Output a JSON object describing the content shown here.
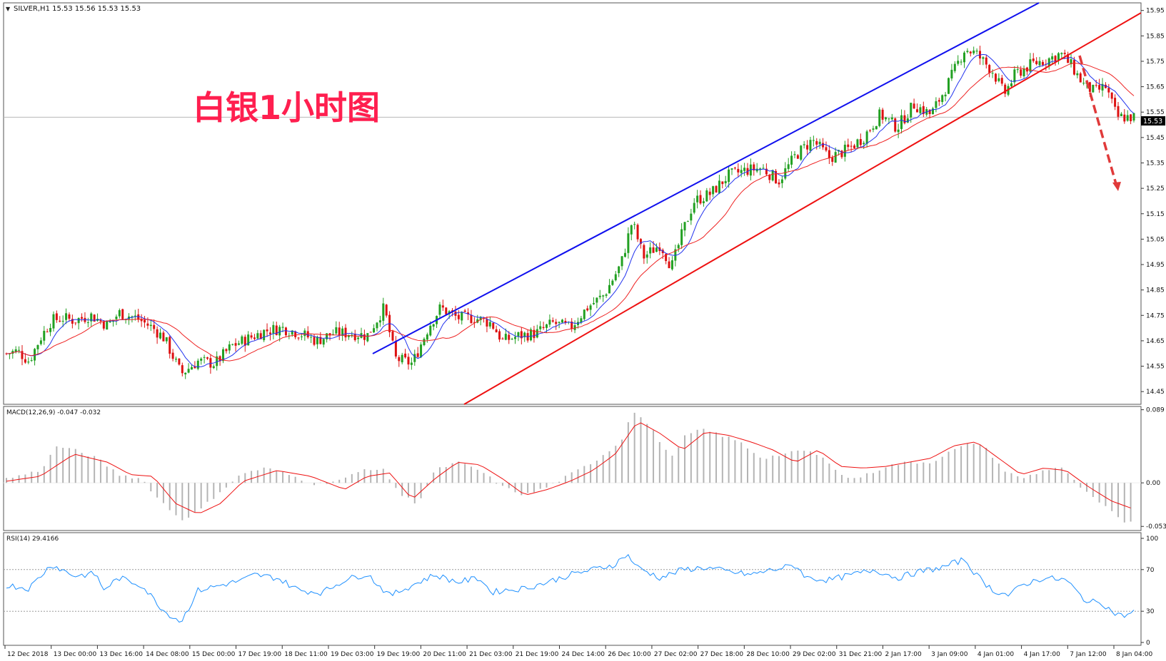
{
  "header": {
    "symbol_line": "SILVER,H1  15.53 15.56 15.53 15.53",
    "overlay_title": "白银1小时图"
  },
  "price_panel": {
    "axis_ticks": [
      "15.95",
      "15.85",
      "15.75",
      "15.65",
      "15.55",
      "15.45",
      "15.35",
      "15.25",
      "15.15",
      "15.05",
      "14.95",
      "14.85",
      "14.75",
      "14.65",
      "14.55",
      "14.45"
    ],
    "current_price_label": "15.53",
    "current_price": 15.53,
    "y_range": [
      14.4,
      15.98
    ]
  },
  "macd_panel": {
    "label": "MACD(12,26,9) -0.047 -0.032",
    "axis_ticks": [
      "0.089",
      "0.00",
      "-0.053"
    ],
    "y_range": [
      -0.058,
      0.093
    ]
  },
  "rsi_panel": {
    "label": "RSI(14) 29.4166",
    "axis_ticks": [
      "100",
      "70",
      "30",
      "0"
    ],
    "levels": [
      70,
      30
    ]
  },
  "time_axis": {
    "labels": [
      "12 Dec 2018",
      "13 Dec 00:00",
      "13 Dec 16:00",
      "14 Dec 08:00",
      "15 Dec 00:00",
      "17 Dec 19:00",
      "18 Dec 11:00",
      "19 Dec 03:00",
      "19 Dec 19:00",
      "20 Dec 11:00",
      "21 Dec 03:00",
      "21 Dec 19:00",
      "24 Dec 14:00",
      "26 Dec 10:00",
      "27 Dec 02:00",
      "27 Dec 18:00",
      "28 Dec 10:00",
      "29 Dec 02:00",
      "31 Dec 21:00",
      "2 Jan 17:00",
      "3 Jan 09:00",
      "4 Jan 01:00",
      "4 Jan 17:00",
      "7 Jan 12:00",
      "8 Jan 04:00"
    ]
  },
  "colors": {
    "bull_candle": "#22a022",
    "bear_candle": "#dd1111",
    "upper_channel": "#1010ee",
    "lower_channel": "#ee1111",
    "fast_ma": "#2233ee",
    "slow_ma": "#ee2222",
    "macd_histogram": "#b4b4b4",
    "macd_signal": "#ee1111",
    "rsi_line": "#1e90ff",
    "title_color": "#ff1f4f",
    "forecast_arrow": "#e03a3a"
  },
  "chart_data": [
    {
      "type": "candlestick",
      "symbol": "SILVER",
      "timeframe": "H1",
      "overlays": [
        "upper channel line (blue)",
        "lower channel line (red)",
        "fast moving average (blue)",
        "slow moving average (red)",
        "dashed down arrow"
      ],
      "price_path": [
        {
          "x": 0.0,
          "y": 14.6
        },
        {
          "x": 0.01,
          "y": 14.61
        },
        {
          "x": 0.02,
          "y": 14.57
        },
        {
          "x": 0.03,
          "y": 14.66
        },
        {
          "x": 0.04,
          "y": 14.73
        },
        {
          "x": 0.05,
          "y": 14.74
        },
        {
          "x": 0.06,
          "y": 14.73
        },
        {
          "x": 0.075,
          "y": 14.75
        },
        {
          "x": 0.09,
          "y": 14.71
        },
        {
          "x": 0.1,
          "y": 14.76
        },
        {
          "x": 0.115,
          "y": 14.74
        },
        {
          "x": 0.13,
          "y": 14.7
        },
        {
          "x": 0.14,
          "y": 14.66
        },
        {
          "x": 0.155,
          "y": 14.52
        },
        {
          "x": 0.17,
          "y": 14.57
        },
        {
          "x": 0.185,
          "y": 14.56
        },
        {
          "x": 0.2,
          "y": 14.63
        },
        {
          "x": 0.215,
          "y": 14.66
        },
        {
          "x": 0.23,
          "y": 14.69
        },
        {
          "x": 0.245,
          "y": 14.7
        },
        {
          "x": 0.26,
          "y": 14.68
        },
        {
          "x": 0.275,
          "y": 14.65
        },
        {
          "x": 0.29,
          "y": 14.68
        },
        {
          "x": 0.305,
          "y": 14.68
        },
        {
          "x": 0.32,
          "y": 14.67
        },
        {
          "x": 0.335,
          "y": 14.78
        },
        {
          "x": 0.345,
          "y": 14.58
        },
        {
          "x": 0.36,
          "y": 14.56
        },
        {
          "x": 0.375,
          "y": 14.71
        },
        {
          "x": 0.385,
          "y": 14.78
        },
        {
          "x": 0.4,
          "y": 14.74
        },
        {
          "x": 0.415,
          "y": 14.74
        },
        {
          "x": 0.43,
          "y": 14.72
        },
        {
          "x": 0.44,
          "y": 14.65
        },
        {
          "x": 0.455,
          "y": 14.67
        },
        {
          "x": 0.47,
          "y": 14.68
        },
        {
          "x": 0.485,
          "y": 14.72
        },
        {
          "x": 0.5,
          "y": 14.7
        },
        {
          "x": 0.515,
          "y": 14.78
        },
        {
          "x": 0.53,
          "y": 14.83
        },
        {
          "x": 0.545,
          "y": 14.95
        },
        {
          "x": 0.555,
          "y": 15.12
        },
        {
          "x": 0.565,
          "y": 14.98
        },
        {
          "x": 0.58,
          "y": 15.03
        },
        {
          "x": 0.59,
          "y": 14.94
        },
        {
          "x": 0.6,
          "y": 15.08
        },
        {
          "x": 0.61,
          "y": 15.2
        },
        {
          "x": 0.625,
          "y": 15.23
        },
        {
          "x": 0.64,
          "y": 15.3
        },
        {
          "x": 0.655,
          "y": 15.32
        },
        {
          "x": 0.67,
          "y": 15.33
        },
        {
          "x": 0.685,
          "y": 15.28
        },
        {
          "x": 0.7,
          "y": 15.38
        },
        {
          "x": 0.715,
          "y": 15.44
        },
        {
          "x": 0.73,
          "y": 15.37
        },
        {
          "x": 0.745,
          "y": 15.4
        },
        {
          "x": 0.76,
          "y": 15.45
        },
        {
          "x": 0.775,
          "y": 15.54
        },
        {
          "x": 0.79,
          "y": 15.49
        },
        {
          "x": 0.805,
          "y": 15.58
        },
        {
          "x": 0.82,
          "y": 15.54
        },
        {
          "x": 0.835,
          "y": 15.66
        },
        {
          "x": 0.85,
          "y": 15.8
        },
        {
          "x": 0.86,
          "y": 15.78
        },
        {
          "x": 0.875,
          "y": 15.71
        },
        {
          "x": 0.885,
          "y": 15.62
        },
        {
          "x": 0.895,
          "y": 15.7
        },
        {
          "x": 0.91,
          "y": 15.74
        },
        {
          "x": 0.925,
          "y": 15.76
        },
        {
          "x": 0.935,
          "y": 15.78
        },
        {
          "x": 0.945,
          "y": 15.73
        },
        {
          "x": 0.955,
          "y": 15.66
        },
        {
          "x": 0.965,
          "y": 15.63
        },
        {
          "x": 0.975,
          "y": 15.65
        },
        {
          "x": 0.985,
          "y": 15.53
        },
        {
          "x": 1.0,
          "y": 15.53
        }
      ]
    },
    {
      "type": "bar",
      "indicator": "MACD(12,26,9)",
      "main_value": -0.047,
      "signal_value": -0.032,
      "histogram_path": [
        {
          "x": 0.0,
          "y": 0.005
        },
        {
          "x": 0.03,
          "y": 0.015
        },
        {
          "x": 0.045,
          "y": 0.045
        },
        {
          "x": 0.06,
          "y": 0.04
        },
        {
          "x": 0.08,
          "y": 0.03
        },
        {
          "x": 0.1,
          "y": 0.01
        },
        {
          "x": 0.12,
          "y": 0.005
        },
        {
          "x": 0.135,
          "y": -0.02
        },
        {
          "x": 0.155,
          "y": -0.045
        },
        {
          "x": 0.17,
          "y": -0.035
        },
        {
          "x": 0.19,
          "y": -0.01
        },
        {
          "x": 0.21,
          "y": 0.012
        },
        {
          "x": 0.23,
          "y": 0.018
        },
        {
          "x": 0.25,
          "y": 0.01
        },
        {
          "x": 0.275,
          "y": -0.002
        },
        {
          "x": 0.3,
          "y": 0.005
        },
        {
          "x": 0.32,
          "y": 0.018
        },
        {
          "x": 0.335,
          "y": 0.015
        },
        {
          "x": 0.35,
          "y": -0.015
        },
        {
          "x": 0.365,
          "y": -0.025
        },
        {
          "x": 0.38,
          "y": 0.015
        },
        {
          "x": 0.4,
          "y": 0.025
        },
        {
          "x": 0.42,
          "y": 0.015
        },
        {
          "x": 0.44,
          "y": -0.005
        },
        {
          "x": 0.46,
          "y": -0.015
        },
        {
          "x": 0.48,
          "y": -0.005
        },
        {
          "x": 0.5,
          "y": 0.01
        },
        {
          "x": 0.52,
          "y": 0.025
        },
        {
          "x": 0.545,
          "y": 0.05
        },
        {
          "x": 0.555,
          "y": 0.089
        },
        {
          "x": 0.57,
          "y": 0.07
        },
        {
          "x": 0.59,
          "y": 0.03
        },
        {
          "x": 0.6,
          "y": 0.055
        },
        {
          "x": 0.615,
          "y": 0.065
        },
        {
          "x": 0.63,
          "y": 0.06
        },
        {
          "x": 0.65,
          "y": 0.05
        },
        {
          "x": 0.67,
          "y": 0.03
        },
        {
          "x": 0.69,
          "y": 0.035
        },
        {
          "x": 0.71,
          "y": 0.04
        },
        {
          "x": 0.73,
          "y": 0.025
        },
        {
          "x": 0.745,
          "y": 0.005
        },
        {
          "x": 0.76,
          "y": 0.008
        },
        {
          "x": 0.78,
          "y": 0.02
        },
        {
          "x": 0.8,
          "y": 0.025
        },
        {
          "x": 0.82,
          "y": 0.025
        },
        {
          "x": 0.84,
          "y": 0.04
        },
        {
          "x": 0.86,
          "y": 0.05
        },
        {
          "x": 0.87,
          "y": 0.04
        },
        {
          "x": 0.885,
          "y": 0.015
        },
        {
          "x": 0.9,
          "y": 0.005
        },
        {
          "x": 0.92,
          "y": 0.015
        },
        {
          "x": 0.935,
          "y": 0.02
        },
        {
          "x": 0.945,
          "y": 0.005
        },
        {
          "x": 0.96,
          "y": -0.015
        },
        {
          "x": 0.975,
          "y": -0.03
        },
        {
          "x": 0.99,
          "y": -0.047
        }
      ],
      "signal_path": [
        {
          "x": 0.0,
          "y": 0.002
        },
        {
          "x": 0.03,
          "y": 0.008
        },
        {
          "x": 0.06,
          "y": 0.035
        },
        {
          "x": 0.09,
          "y": 0.025
        },
        {
          "x": 0.11,
          "y": 0.01
        },
        {
          "x": 0.13,
          "y": 0.008
        },
        {
          "x": 0.15,
          "y": -0.025
        },
        {
          "x": 0.17,
          "y": -0.038
        },
        {
          "x": 0.19,
          "y": -0.025
        },
        {
          "x": 0.21,
          "y": 0.002
        },
        {
          "x": 0.24,
          "y": 0.015
        },
        {
          "x": 0.27,
          "y": 0.008
        },
        {
          "x": 0.3,
          "y": -0.008
        },
        {
          "x": 0.32,
          "y": 0.008
        },
        {
          "x": 0.34,
          "y": 0.012
        },
        {
          "x": 0.36,
          "y": -0.02
        },
        {
          "x": 0.38,
          "y": 0.005
        },
        {
          "x": 0.4,
          "y": 0.025
        },
        {
          "x": 0.42,
          "y": 0.022
        },
        {
          "x": 0.44,
          "y": 0.005
        },
        {
          "x": 0.46,
          "y": -0.015
        },
        {
          "x": 0.48,
          "y": -0.008
        },
        {
          "x": 0.5,
          "y": 0.002
        },
        {
          "x": 0.52,
          "y": 0.015
        },
        {
          "x": 0.54,
          "y": 0.035
        },
        {
          "x": 0.56,
          "y": 0.075
        },
        {
          "x": 0.58,
          "y": 0.06
        },
        {
          "x": 0.6,
          "y": 0.04
        },
        {
          "x": 0.62,
          "y": 0.062
        },
        {
          "x": 0.64,
          "y": 0.058
        },
        {
          "x": 0.66,
          "y": 0.05
        },
        {
          "x": 0.68,
          "y": 0.04
        },
        {
          "x": 0.7,
          "y": 0.025
        },
        {
          "x": 0.72,
          "y": 0.04
        },
        {
          "x": 0.74,
          "y": 0.02
        },
        {
          "x": 0.76,
          "y": 0.018
        },
        {
          "x": 0.78,
          "y": 0.02
        },
        {
          "x": 0.8,
          "y": 0.025
        },
        {
          "x": 0.82,
          "y": 0.03
        },
        {
          "x": 0.84,
          "y": 0.045
        },
        {
          "x": 0.86,
          "y": 0.05
        },
        {
          "x": 0.88,
          "y": 0.03
        },
        {
          "x": 0.9,
          "y": 0.01
        },
        {
          "x": 0.92,
          "y": 0.018
        },
        {
          "x": 0.94,
          "y": 0.015
        },
        {
          "x": 0.96,
          "y": -0.005
        },
        {
          "x": 0.98,
          "y": -0.022
        },
        {
          "x": 1.0,
          "y": -0.032
        }
      ]
    },
    {
      "type": "line",
      "indicator": "RSI(14)",
      "current_value": 29.4166,
      "ylim": [
        0,
        100
      ],
      "levels": [
        30,
        70
      ],
      "series": [
        {
          "x": 0.0,
          "y": 55
        },
        {
          "x": 0.02,
          "y": 52
        },
        {
          "x": 0.04,
          "y": 75
        },
        {
          "x": 0.06,
          "y": 64
        },
        {
          "x": 0.08,
          "y": 66
        },
        {
          "x": 0.085,
          "y": 50
        },
        {
          "x": 0.1,
          "y": 62
        },
        {
          "x": 0.12,
          "y": 55
        },
        {
          "x": 0.14,
          "y": 30
        },
        {
          "x": 0.155,
          "y": 20
        },
        {
          "x": 0.17,
          "y": 50
        },
        {
          "x": 0.19,
          "y": 55
        },
        {
          "x": 0.21,
          "y": 60
        },
        {
          "x": 0.22,
          "y": 65
        },
        {
          "x": 0.24,
          "y": 62
        },
        {
          "x": 0.26,
          "y": 50
        },
        {
          "x": 0.28,
          "y": 48
        },
        {
          "x": 0.3,
          "y": 60
        },
        {
          "x": 0.32,
          "y": 66
        },
        {
          "x": 0.33,
          "y": 55
        },
        {
          "x": 0.34,
          "y": 45
        },
        {
          "x": 0.36,
          "y": 55
        },
        {
          "x": 0.38,
          "y": 65
        },
        {
          "x": 0.4,
          "y": 58
        },
        {
          "x": 0.42,
          "y": 62
        },
        {
          "x": 0.43,
          "y": 48
        },
        {
          "x": 0.44,
          "y": 50
        },
        {
          "x": 0.46,
          "y": 52
        },
        {
          "x": 0.48,
          "y": 58
        },
        {
          "x": 0.5,
          "y": 65
        },
        {
          "x": 0.52,
          "y": 70
        },
        {
          "x": 0.54,
          "y": 75
        },
        {
          "x": 0.55,
          "y": 85
        },
        {
          "x": 0.56,
          "y": 72
        },
        {
          "x": 0.58,
          "y": 62
        },
        {
          "x": 0.6,
          "y": 70
        },
        {
          "x": 0.62,
          "y": 72
        },
        {
          "x": 0.64,
          "y": 68
        },
        {
          "x": 0.66,
          "y": 65
        },
        {
          "x": 0.68,
          "y": 70
        },
        {
          "x": 0.7,
          "y": 74
        },
        {
          "x": 0.71,
          "y": 62
        },
        {
          "x": 0.73,
          "y": 60
        },
        {
          "x": 0.75,
          "y": 65
        },
        {
          "x": 0.77,
          "y": 70
        },
        {
          "x": 0.79,
          "y": 62
        },
        {
          "x": 0.81,
          "y": 68
        },
        {
          "x": 0.83,
          "y": 72
        },
        {
          "x": 0.85,
          "y": 80
        },
        {
          "x": 0.86,
          "y": 65
        },
        {
          "x": 0.875,
          "y": 50
        },
        {
          "x": 0.89,
          "y": 45
        },
        {
          "x": 0.9,
          "y": 55
        },
        {
          "x": 0.92,
          "y": 62
        },
        {
          "x": 0.94,
          "y": 60
        },
        {
          "x": 0.95,
          "y": 48
        },
        {
          "x": 0.96,
          "y": 38
        },
        {
          "x": 0.97,
          "y": 40
        },
        {
          "x": 0.98,
          "y": 30
        },
        {
          "x": 0.99,
          "y": 25
        },
        {
          "x": 1.0,
          "y": 29.4
        }
      ]
    }
  ]
}
